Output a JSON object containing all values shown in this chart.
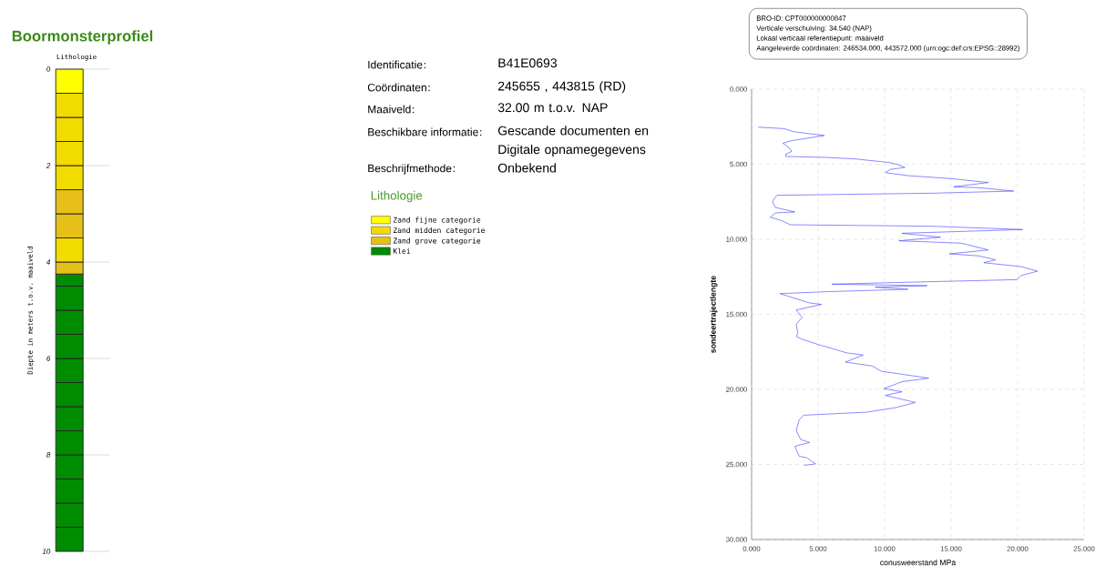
{
  "chart_data": [
    {
      "type": "bar",
      "title": "Boormonsterprofiel",
      "subtitle": "Lithologie",
      "ylabel": "Diepte in meters t.o.v. maaiveld",
      "categories": [
        null
      ],
      "stacked": true,
      "ylim": [
        10,
        0
      ],
      "yticks": [
        0,
        2,
        4,
        6,
        8,
        10
      ],
      "grid": "y",
      "legend": "right",
      "legend_title": "Lithologie",
      "series": [
        {
          "name": "Zand fijne categorie",
          "color": "#ffff00",
          "values": [
            0.5
          ]
        },
        {
          "name": "Zand midden categorie",
          "color": "#f2dc00",
          "values": [
            0.5
          ]
        },
        {
          "color": "#f2dc00",
          "values": [
            0.5
          ]
        },
        {
          "color": "#f2dc00",
          "values": [
            0.5
          ]
        },
        {
          "color": "#f2dc00",
          "values": [
            0.5
          ]
        },
        {
          "name": "Zand grove categorie",
          "color": "#e6c018",
          "values": [
            0.5
          ]
        },
        {
          "color": "#e6c018",
          "values": [
            0.5
          ]
        },
        {
          "color": "#f2dc00",
          "values": [
            0.5
          ]
        },
        {
          "color": "#e6c018",
          "values": [
            0.25
          ]
        },
        {
          "name": "Klei",
          "color": "#008c00",
          "values": [
            0.25
          ]
        },
        {
          "color": "#008c00",
          "values": [
            0.5
          ]
        },
        {
          "color": "#008c00",
          "values": [
            0.5
          ]
        },
        {
          "color": "#008c00",
          "values": [
            0.5
          ]
        },
        {
          "color": "#008c00",
          "values": [
            0.5
          ]
        },
        {
          "color": "#008c00",
          "values": [
            0.5
          ]
        },
        {
          "color": "#008c00",
          "values": [
            0.5
          ]
        },
        {
          "color": "#008c00",
          "values": [
            0.5
          ]
        },
        {
          "color": "#008c00",
          "values": [
            0.5
          ]
        },
        {
          "color": "#008c00",
          "values": [
            0.5
          ]
        },
        {
          "color": "#008c00",
          "values": [
            0.5
          ]
        },
        {
          "color": "#008c00",
          "values": [
            0.5
          ]
        }
      ]
    },
    {
      "type": "other",
      "categories": [
        "Identificatie",
        "Coördinaten",
        "Maaiveld",
        "Beschikbare informatie",
        "Beschrijfmethode"
      ],
      "annotations": [
        "B41E0693",
        "245655 , 443815 (RD)",
        "32.00 m t.o.v. NAP",
        "Gescande documenten en Digitale opnamegegevens",
        "Onbekend"
      ]
    },
    {
      "type": "line",
      "xlabel": "conusweerstand MPa",
      "ylabel": "sondeertrajectlengte",
      "annotations": [
        "BRO-ID: CPT000000000847",
        "Verticale verschuiving: 34.540 (NAP)",
        "Lokaal verticaal referentiepunt: maaiveld",
        "Aangeleverde coördinaten: 246534.000, 443572.000 (urn:ogc:def:crs:EPSG::28992)"
      ],
      "xlim": [
        0,
        25
      ],
      "ylim": [
        30,
        0
      ],
      "grid": true,
      "xticks": [
        {
          "value": 0,
          "label": "0.000"
        },
        {
          "value": 5,
          "label": "5.000"
        },
        {
          "value": 10,
          "label": "10.000"
        },
        {
          "value": 15,
          "label": "15.000"
        },
        {
          "value": 20,
          "label": "20.000"
        },
        {
          "value": 25,
          "label": "25.000"
        }
      ],
      "yticks": [
        {
          "value": 0,
          "label": "0.000"
        },
        {
          "value": 5,
          "label": "5.000"
        },
        {
          "value": 10,
          "label": "10.000"
        },
        {
          "value": 15,
          "label": "15.000"
        },
        {
          "value": 20,
          "label": "20.000"
        },
        {
          "value": 25,
          "label": "25.000"
        },
        {
          "value": 30,
          "label": "30.000"
        }
      ],
      "x": [
        0.51,
        2.46,
        3.13,
        5.48,
        3.02,
        2.35,
        2.8,
        3.02,
        2.57,
        2.57,
        5.71,
        7.83,
        10.41,
        11.08,
        11.53,
        10.41,
        10.07,
        11.75,
        15.0,
        17.8,
        15.2,
        17.2,
        19.7,
        13.54,
        1.9,
        1.57,
        1.79,
        3.25,
        1.79,
        1.41,
        2.35,
        2.91,
        13.54,
        20.37,
        11.3,
        14.21,
        11.08,
        15.78,
        17.8,
        14.88,
        17.12,
        18.35,
        17.46,
        20.26,
        21.49,
        20.26,
        19.92,
        13.2,
        6.04,
        13.2,
        9.29,
        11.75,
        5.71,
        2.13,
        4.36,
        5.26,
        3.36,
        3.8,
        3.36,
        3.47,
        3.36,
        3.8,
        5.04,
        6.04,
        7.16,
        8.39,
        7.05,
        9.06,
        9.74,
        13.32,
        11.3,
        9.96,
        11.3,
        10.07,
        12.31,
        10.86,
        8.62,
        3.92,
        3.58,
        3.36,
        3.69,
        4.36,
        3.25,
        3.58,
        4.14,
        4.81,
        3.96
      ],
      "series": [
        {
          "color": "#3b3bff",
          "values": [
            2.53,
            2.63,
            2.83,
            3.09,
            3.43,
            3.6,
            3.88,
            4.14,
            4.34,
            4.48,
            4.55,
            4.65,
            4.89,
            5.05,
            5.21,
            5.35,
            5.56,
            5.76,
            5.96,
            6.22,
            6.5,
            6.57,
            6.79,
            6.93,
            7.07,
            7.47,
            7.88,
            8.18,
            8.24,
            8.53,
            8.79,
            9.03,
            9.13,
            9.35,
            9.6,
            9.86,
            10.1,
            10.26,
            10.71,
            10.97,
            11.11,
            11.37,
            11.56,
            11.82,
            12.12,
            12.42,
            12.69,
            12.83,
            12.99,
            13.09,
            13.19,
            13.33,
            13.49,
            13.62,
            14.24,
            14.34,
            14.71,
            15.2,
            15.65,
            16.26,
            16.46,
            16.66,
            17.02,
            17.27,
            17.57,
            17.71,
            18.18,
            18.44,
            18.79,
            19.25,
            19.49,
            19.94,
            20.16,
            20.4,
            20.87,
            21.21,
            21.52,
            21.72,
            22.02,
            22.73,
            23.34,
            23.54,
            23.79,
            24.45,
            24.55,
            24.96,
            25.06
          ]
        }
      ]
    }
  ]
}
